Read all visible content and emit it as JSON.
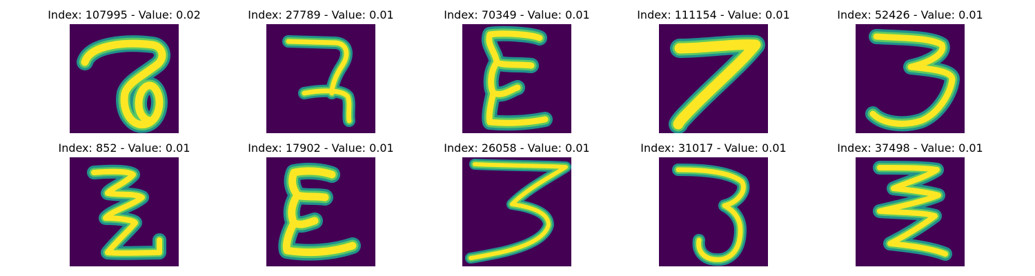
{
  "colors": {
    "background": "#440154",
    "stroke_edge": "#21918c",
    "stroke_mid": "#5ec962",
    "stroke_core": "#fde725"
  },
  "panels": [
    {
      "title": "Index: 107995 - Value: 0.02",
      "digit_shape": "seven-with-loop"
    },
    {
      "title": "Index: 27789 - Value: 0.01",
      "digit_shape": "seven-with-crossbar"
    },
    {
      "title": "Index: 70349 - Value: 0.01",
      "digit_shape": "epsilon-three"
    },
    {
      "title": "Index: 111154 - Value: 0.01",
      "digit_shape": "seven-thick"
    },
    {
      "title": "Index: 52426 - Value: 0.01",
      "digit_shape": "three-rounded"
    },
    {
      "title": "Index: 852 - Value: 0.01",
      "digit_shape": "zigzag-three"
    },
    {
      "title": "Index: 17902 - Value: 0.01",
      "digit_shape": "epsilon-three"
    },
    {
      "title": "Index: 26058 - Value: 0.01",
      "digit_shape": "three-flat-top"
    },
    {
      "title": "Index: 31017 - Value: 0.01",
      "digit_shape": "three-hook"
    },
    {
      "title": "Index: 37498 - Value: 0.01",
      "digit_shape": "zigzag-three"
    }
  ]
}
